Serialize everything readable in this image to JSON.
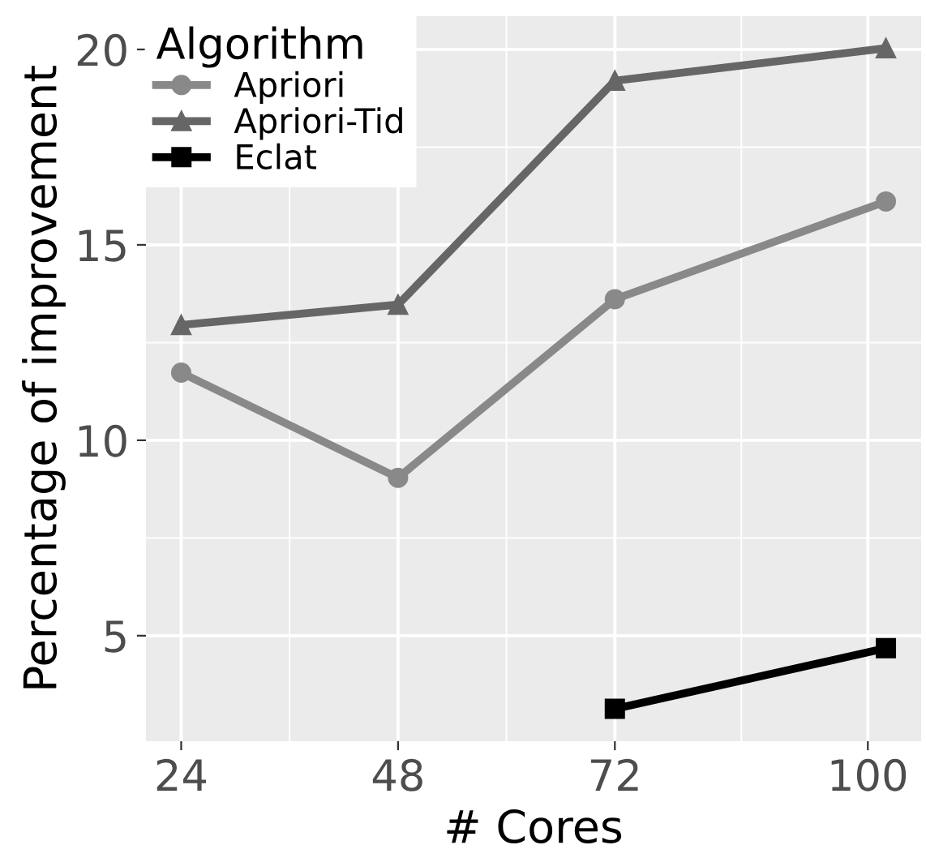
{
  "chart_data": {
    "type": "line",
    "xlabel": "# Cores",
    "ylabel": "Percentage of improvement",
    "legend_title": "Algorithm",
    "xlim": [
      20.1,
      105.9
    ],
    "xticks": [
      24,
      48,
      72,
      100
    ],
    "ylim": [
      2.3,
      20.85
    ],
    "yticks": [
      5,
      10,
      15,
      20
    ],
    "grid": true,
    "legend": "top left",
    "line_style": "solid",
    "series": [
      {
        "name": "Apriori",
        "color": "#898989",
        "marker": "circle",
        "x": [
          24,
          48,
          72,
          102
        ],
        "values": [
          11.73,
          9.04,
          13.61,
          16.11
        ]
      },
      {
        "name": "Apriori-Tid",
        "color": "#666666",
        "marker": "triangle",
        "x": [
          24,
          48,
          72,
          102
        ],
        "values": [
          12.95,
          13.47,
          19.2,
          20.03
        ]
      },
      {
        "name": "Eclat",
        "color": "#000000",
        "marker": "square",
        "x": [
          72,
          102
        ],
        "values": [
          3.13,
          4.68
        ]
      }
    ]
  }
}
